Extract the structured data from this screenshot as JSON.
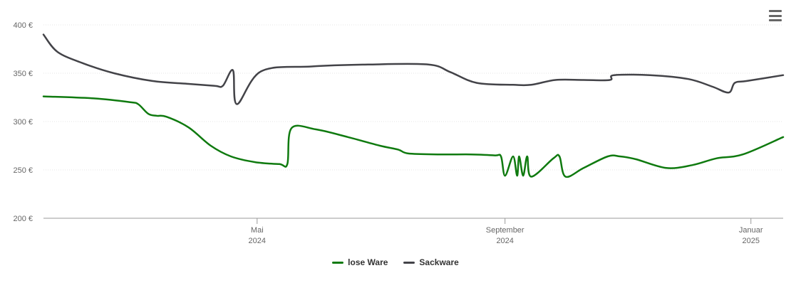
{
  "chart_data": {
    "type": "line",
    "title": "",
    "xlabel": "",
    "ylabel": "",
    "ylim": [
      200,
      400
    ],
    "yticks": [
      {
        "value": 200,
        "label": "200 €"
      },
      {
        "value": 250,
        "label": "250 €"
      },
      {
        "value": 300,
        "label": "300 €"
      },
      {
        "value": 350,
        "label": "350 €"
      },
      {
        "value": 400,
        "label": "400 €"
      }
    ],
    "xlim": [
      "2024-01-16",
      "2025-01-17"
    ],
    "xticks": [
      {
        "date": "2024-05-01",
        "label1": "Mai",
        "label2": "2024"
      },
      {
        "date": "2024-09-01",
        "label1": "September",
        "label2": "2024"
      },
      {
        "date": "2025-01-01",
        "label1": "Januar",
        "label2": "2025"
      }
    ],
    "grid": true,
    "legend": "bottom-center",
    "series": [
      {
        "name": "lose Ware",
        "color": "#0f7a0f",
        "points": [
          [
            "2024-01-16",
            326
          ],
          [
            "2024-02-10",
            324
          ],
          [
            "2024-02-28",
            320
          ],
          [
            "2024-03-03",
            318
          ],
          [
            "2024-03-08",
            308
          ],
          [
            "2024-03-12",
            306
          ],
          [
            "2024-03-17",
            305
          ],
          [
            "2024-03-28",
            294
          ],
          [
            "2024-04-08",
            275
          ],
          [
            "2024-04-18",
            264
          ],
          [
            "2024-04-30",
            258
          ],
          [
            "2024-05-12",
            256
          ],
          [
            "2024-05-16",
            256
          ],
          [
            "2024-05-18",
            293
          ],
          [
            "2024-05-30",
            292
          ],
          [
            "2024-06-15",
            284
          ],
          [
            "2024-07-01",
            275
          ],
          [
            "2024-07-10",
            271
          ],
          [
            "2024-07-15",
            267
          ],
          [
            "2024-07-30",
            266
          ],
          [
            "2024-08-15",
            266
          ],
          [
            "2024-08-27",
            265
          ],
          [
            "2024-08-30",
            264
          ],
          [
            "2024-09-01",
            244
          ],
          [
            "2024-09-05",
            264
          ],
          [
            "2024-09-07",
            244
          ],
          [
            "2024-09-08",
            264
          ],
          [
            "2024-09-10",
            244
          ],
          [
            "2024-09-12",
            264
          ],
          [
            "2024-09-14",
            243
          ],
          [
            "2024-09-25",
            262
          ],
          [
            "2024-09-28",
            264
          ],
          [
            "2024-10-01",
            243
          ],
          [
            "2024-10-10",
            252
          ],
          [
            "2024-10-22",
            264
          ],
          [
            "2024-10-28",
            264
          ],
          [
            "2024-11-05",
            261
          ],
          [
            "2024-11-20",
            252
          ],
          [
            "2024-12-03",
            255
          ],
          [
            "2024-12-15",
            262
          ],
          [
            "2024-12-28",
            266
          ],
          [
            "2025-01-17",
            284
          ]
        ]
      },
      {
        "name": "Sackware",
        "color": "#434348",
        "points": [
          [
            "2024-01-16",
            390
          ],
          [
            "2024-01-23",
            372
          ],
          [
            "2024-02-05",
            360
          ],
          [
            "2024-02-20",
            350
          ],
          [
            "2024-03-10",
            342
          ],
          [
            "2024-03-28",
            339
          ],
          [
            "2024-04-10",
            337
          ],
          [
            "2024-04-14",
            337
          ],
          [
            "2024-04-19",
            353
          ],
          [
            "2024-04-21",
            318
          ],
          [
            "2024-05-03",
            352
          ],
          [
            "2024-05-28",
            357
          ],
          [
            "2024-06-25",
            359
          ],
          [
            "2024-07-25",
            359
          ],
          [
            "2024-08-05",
            351
          ],
          [
            "2024-08-18",
            340
          ],
          [
            "2024-09-05",
            338
          ],
          [
            "2024-09-14",
            338
          ],
          [
            "2024-09-26",
            343
          ],
          [
            "2024-10-10",
            343
          ],
          [
            "2024-10-23",
            343
          ],
          [
            "2024-10-25",
            348
          ],
          [
            "2024-11-12",
            348
          ],
          [
            "2024-12-01",
            344
          ],
          [
            "2024-12-13",
            336
          ],
          [
            "2024-12-21",
            330
          ],
          [
            "2024-12-24",
            340
          ],
          [
            "2024-12-30",
            342
          ],
          [
            "2025-01-17",
            348
          ]
        ]
      }
    ]
  },
  "icons": {
    "menu": "hamburger-menu-icon"
  }
}
